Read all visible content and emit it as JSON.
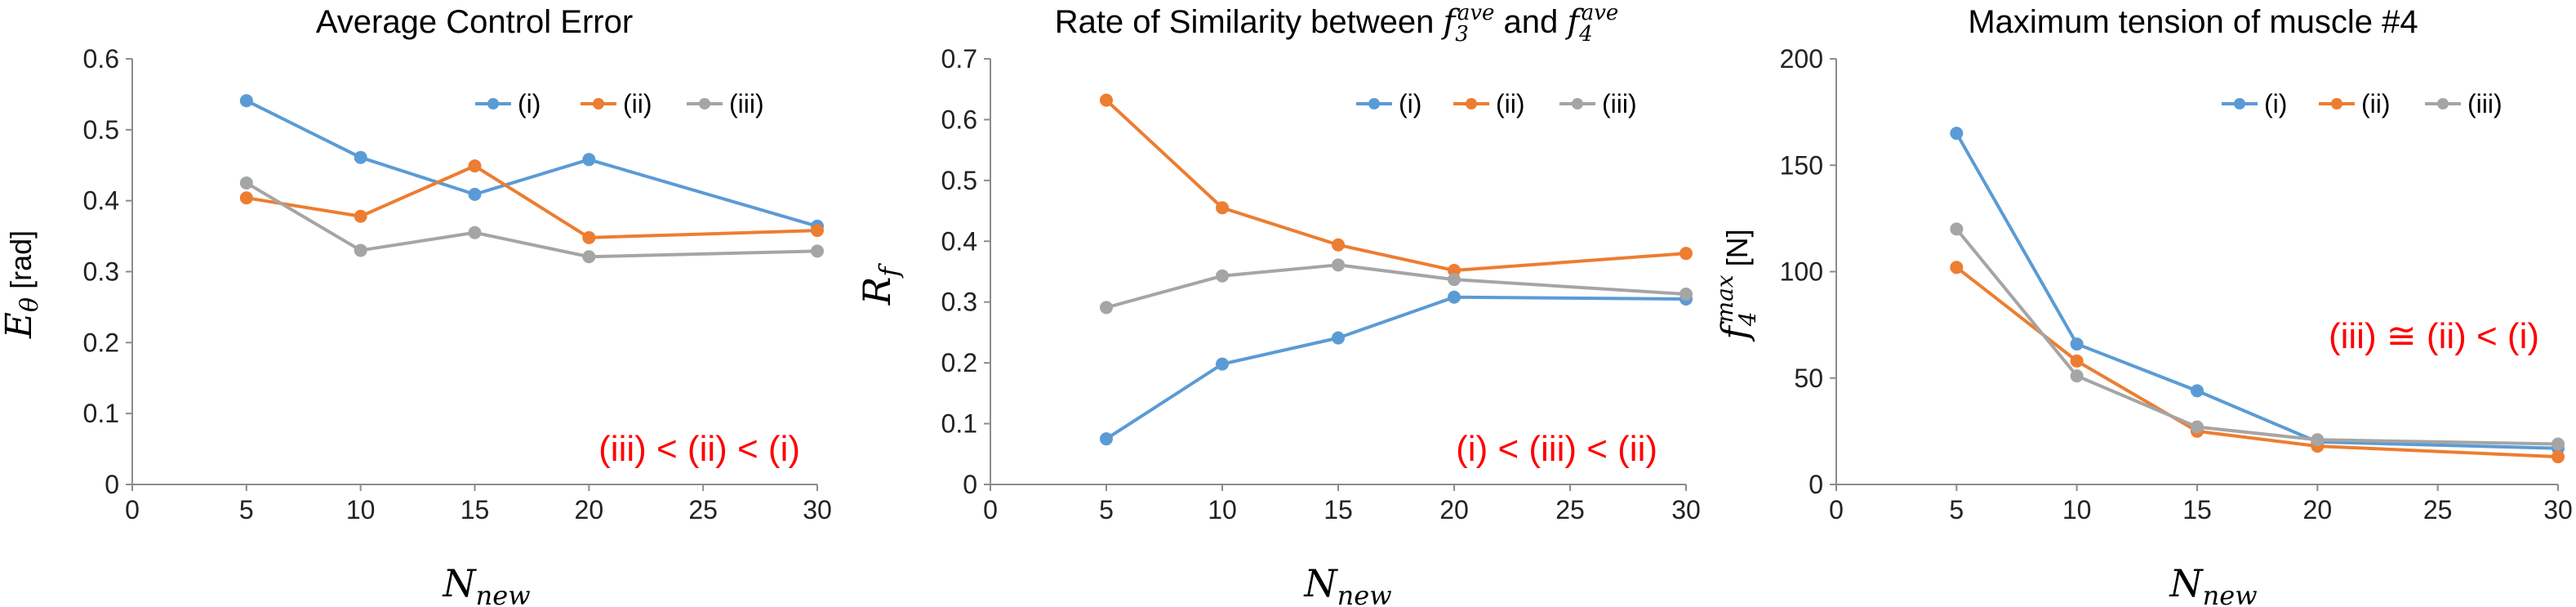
{
  "chart_data": [
    {
      "type": "line",
      "title": "Average Control Error",
      "ylabel": {
        "main": "E",
        "sub": "θ",
        "unit": " [rad]"
      },
      "xlabel": {
        "main": "N",
        "sub": "new"
      },
      "xlim": [
        0,
        30
      ],
      "ylim": [
        0,
        0.6
      ],
      "xticks": [
        0,
        5,
        10,
        15,
        20,
        25,
        30
      ],
      "yticks": [
        "0",
        "0.1",
        "0.2",
        "0.3",
        "0.4",
        "0.5",
        "0.6"
      ],
      "x": [
        5,
        10,
        15,
        20,
        30
      ],
      "series": [
        {
          "name": "(i)",
          "color": "#5b9bd5",
          "values": [
            0.541,
            0.461,
            0.409,
            0.458,
            0.364
          ]
        },
        {
          "name": "(ii)",
          "color": "#ed7d31",
          "values": [
            0.404,
            0.378,
            0.449,
            0.348,
            0.358
          ]
        },
        {
          "name": "(iii)",
          "color": "#a5a5a5",
          "values": [
            0.425,
            0.33,
            0.355,
            0.321,
            0.329
          ]
        }
      ],
      "legend_position": "top-right",
      "annotation": {
        "text": "(iii) < (ii) < (i)",
        "color": "#ff0000"
      }
    },
    {
      "type": "line",
      "title_parts": {
        "prefix": "Rate of Similarity between ",
        "a_main": "f",
        "a_sub": "3",
        "a_sup": "ave",
        "middle": " and ",
        "b_main": "f",
        "b_sub": "4",
        "b_sup": "ave"
      },
      "ylabel": {
        "main": "R",
        "sub": "f",
        "unit": ""
      },
      "xlabel": {
        "main": "N",
        "sub": "new"
      },
      "xlim": [
        0,
        30
      ],
      "ylim": [
        0,
        0.7
      ],
      "xticks": [
        0,
        5,
        10,
        15,
        20,
        25,
        30
      ],
      "yticks": [
        "0",
        "0.1",
        "0.2",
        "0.3",
        "0.4",
        "0.5",
        "0.6",
        "0.7"
      ],
      "x": [
        5,
        10,
        15,
        20,
        30
      ],
      "series": [
        {
          "name": "(i)",
          "color": "#5b9bd5",
          "values": [
            0.075,
            0.198,
            0.241,
            0.308,
            0.305
          ]
        },
        {
          "name": "(ii)",
          "color": "#ed7d31",
          "values": [
            0.632,
            0.455,
            0.394,
            0.352,
            0.38
          ]
        },
        {
          "name": "(iii)",
          "color": "#a5a5a5",
          "values": [
            0.291,
            0.343,
            0.361,
            0.337,
            0.313
          ]
        }
      ],
      "legend_position": "top-right",
      "annotation": {
        "text": "(i) < (iii) < (ii)",
        "color": "#ff0000"
      }
    },
    {
      "type": "line",
      "title": "Maximum tension of muscle #4",
      "ylabel": {
        "main": "f",
        "sub": "4",
        "sup": "max",
        "unit": " [N]"
      },
      "xlabel": {
        "main": "N",
        "sub": "new"
      },
      "xlim": [
        0,
        30
      ],
      "ylim": [
        0,
        200
      ],
      "xticks": [
        0,
        5,
        10,
        15,
        20,
        25,
        30
      ],
      "yticks": [
        "0",
        "50",
        "100",
        "150",
        "200"
      ],
      "x": [
        5,
        10,
        15,
        20,
        30
      ],
      "series": [
        {
          "name": "(i)",
          "color": "#5b9bd5",
          "values": [
            165,
            66,
            44,
            20,
            17
          ]
        },
        {
          "name": "(ii)",
          "color": "#ed7d31",
          "values": [
            102,
            58,
            25,
            18,
            13
          ]
        },
        {
          "name": "(iii)",
          "color": "#a5a5a5",
          "values": [
            120,
            51,
            27,
            21,
            19
          ]
        }
      ],
      "legend_position": "top-right",
      "annotation": {
        "text": "(iii) ≅ (ii) < (i)",
        "color": "#ff0000"
      }
    }
  ]
}
